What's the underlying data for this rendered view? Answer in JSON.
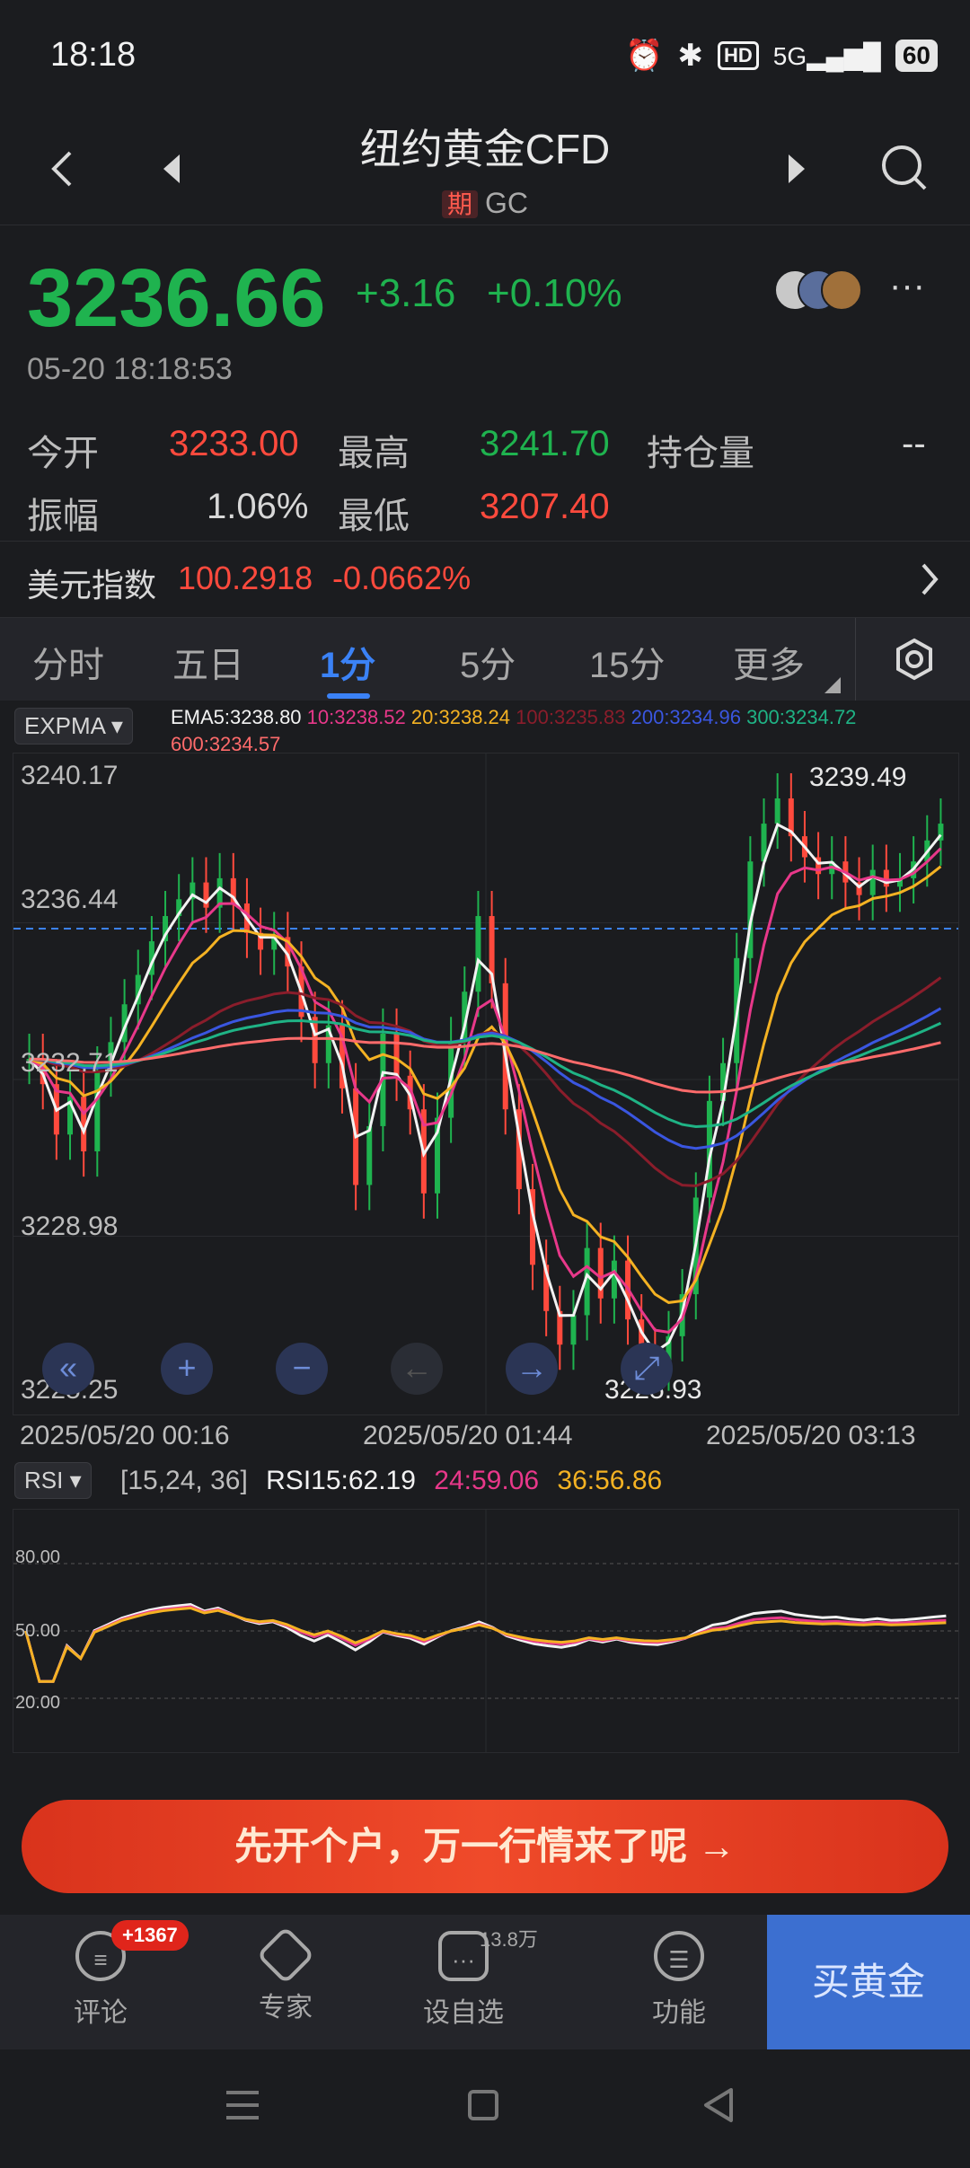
{
  "status_bar": {
    "time": "18:18",
    "battery": "60"
  },
  "header": {
    "title": "纽约黄金CFD",
    "tag": "期",
    "code": "GC"
  },
  "quote": {
    "price": "3236.66",
    "change": "+3.16",
    "change_pct": "+0.10%",
    "datetime": "05-20 18:18:53",
    "open_label": "今开",
    "open": "3233.00",
    "high_label": "最高",
    "high": "3241.70",
    "oi_label": "持仓量",
    "oi": "--",
    "amp_label": "振幅",
    "amp": "1.06%",
    "low_label": "最低",
    "low": "3207.40"
  },
  "usd_index": {
    "label": "美元指数",
    "value": "100.2918",
    "change": "-0.0662%"
  },
  "tabs": [
    "分时",
    "五日",
    "1分",
    "5分",
    "15分",
    "更多"
  ],
  "active_tab": "1分",
  "main_indicator": {
    "name": "EXPMA",
    "ema5": "EMA5:3238.80",
    "ema10": "10:3238.52",
    "ema20": "20:3238.24",
    "ema100": "100:3235.83",
    "ema200": "200:3234.96",
    "ema300": "300:3234.72",
    "ema600": "600:3234.57"
  },
  "chart_data": [
    {
      "type": "candlestick",
      "title": "EXPMA",
      "y_ticks": [
        "3240.17",
        "3236.44",
        "3232.71",
        "3228.98",
        "3225.25"
      ],
      "x_ticks": [
        "2025/05/20 00:16",
        "2025/05/20 01:44",
        "2025/05/20 03:13"
      ],
      "ylim": [
        3225.25,
        3240.17
      ],
      "high_label": "3239.49",
      "low_label": "3225.93",
      "last_price_line": 3236.3,
      "closes": [
        3233.2,
        3232.6,
        3231.4,
        3232.3,
        3231.0,
        3232.9,
        3233.6,
        3234.5,
        3235.2,
        3236.0,
        3236.6,
        3237.0,
        3237.4,
        3236.8,
        3237.5,
        3236.9,
        3236.2,
        3235.8,
        3236.1,
        3235.4,
        3234.2,
        3233.1,
        3234.0,
        3232.5,
        3230.2,
        3231.6,
        3233.8,
        3232.8,
        3232.0,
        3230.0,
        3231.8,
        3233.6,
        3234.8,
        3236.6,
        3235.0,
        3232.0,
        3230.1,
        3228.3,
        3227.2,
        3226.4,
        3227.1,
        3228.7,
        3227.5,
        3228.4,
        3227.0,
        3226.2,
        3225.9,
        3226.6,
        3227.6,
        3229.9,
        3232.2,
        3233.1,
        3235.6,
        3237.9,
        3238.8,
        3239.4,
        3238.5,
        3238.0,
        3237.6,
        3237.9,
        3237.4,
        3237.1,
        3237.7,
        3237.3,
        3237.5,
        3237.9,
        3238.4,
        3238.8
      ],
      "series": [
        {
          "name": "EMA5"
        },
        {
          "name": "10"
        },
        {
          "name": "20"
        },
        {
          "name": "100"
        },
        {
          "name": "200"
        },
        {
          "name": "300"
        },
        {
          "name": "600"
        }
      ]
    },
    {
      "type": "line",
      "title": "RSI",
      "params": "[15,24, 36]",
      "series": [
        {
          "name": "RSI15",
          "last": "62.19"
        },
        {
          "name": "24",
          "last": "59.06"
        },
        {
          "name": "36",
          "last": "56.86"
        }
      ],
      "y_ticks": [
        "80.00",
        "50.00",
        "20.00"
      ],
      "ylim": [
        0,
        100
      ]
    }
  ],
  "rsi": {
    "name": "RSI",
    "params": "[15,24, 36]",
    "rsi15": "RSI15:62.19",
    "rsi24": "24:59.06",
    "rsi36": "36:56.86"
  },
  "promo": "先开个户，万一行情来了呢 →",
  "bottom_nav": {
    "comment": "评论",
    "comment_badge": "+1367",
    "expert": "专家",
    "watch": "设自选",
    "watch_count": "13.8万",
    "func": "功能",
    "buy": "买黄金"
  },
  "colors": {
    "up": "#ff4a3d",
    "down": "#1fb34f",
    "accent": "#3b82f6"
  }
}
